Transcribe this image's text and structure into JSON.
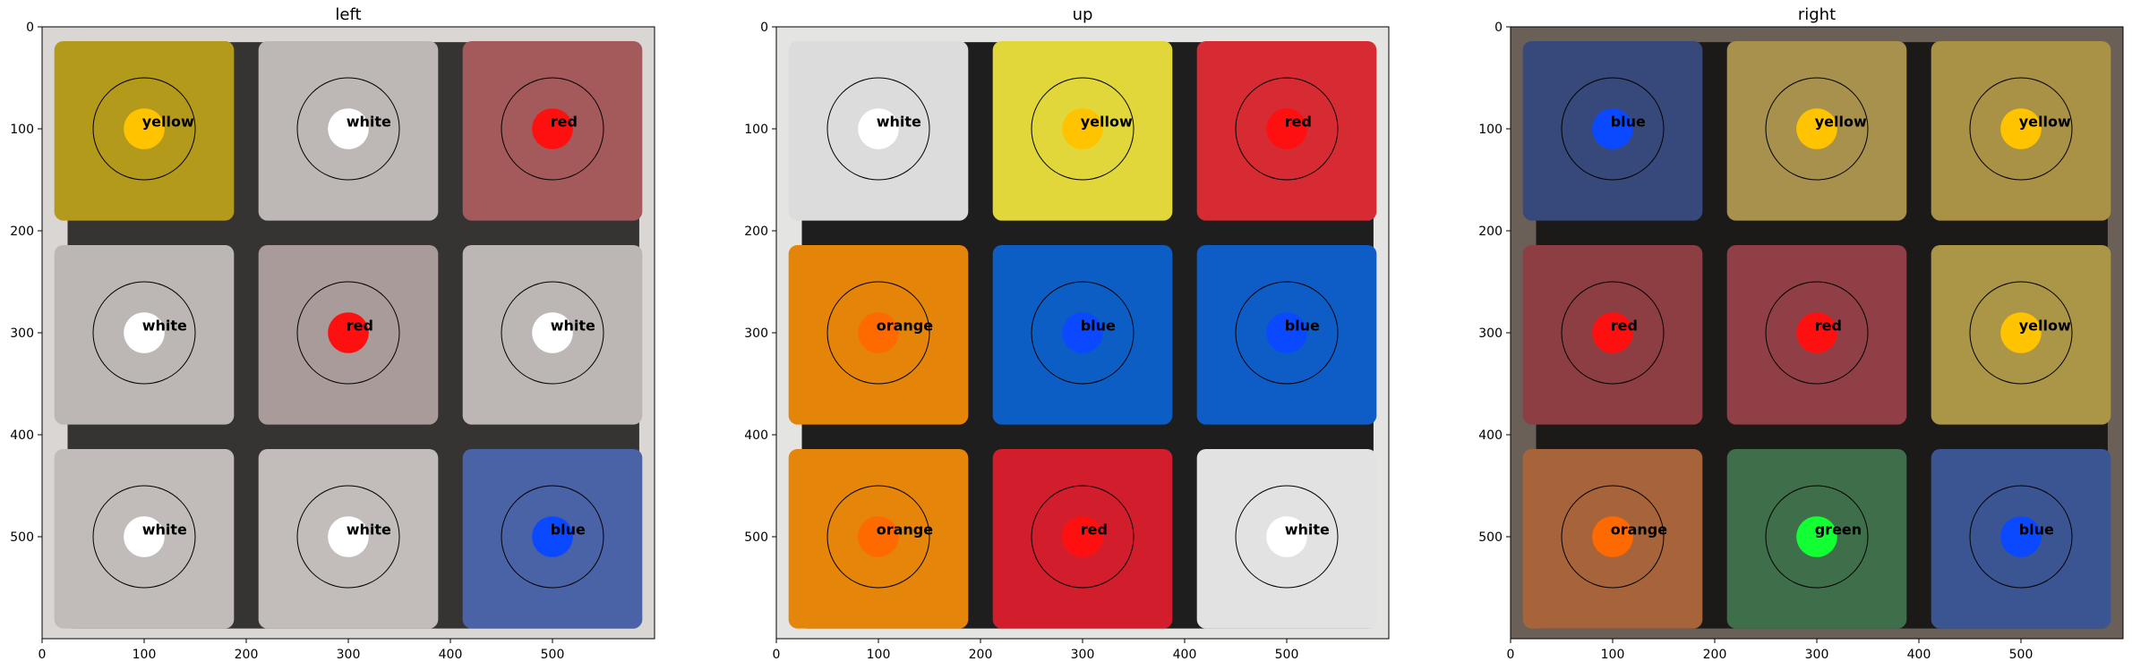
{
  "figure": {
    "background": "#ffffff",
    "axis_range": {
      "x": [
        0,
        599
      ],
      "y": [
        0,
        599
      ]
    },
    "ticks": {
      "values": [
        0,
        100,
        200,
        300,
        400,
        500
      ],
      "labels": [
        "0",
        "100",
        "200",
        "300",
        "400",
        "500"
      ]
    },
    "sample_points": [
      [
        100,
        100
      ],
      [
        300,
        100
      ],
      [
        500,
        100
      ],
      [
        100,
        300
      ],
      [
        300,
        300
      ],
      [
        500,
        300
      ],
      [
        100,
        500
      ],
      [
        300,
        500
      ],
      [
        500,
        500
      ]
    ],
    "palette": {
      "white": {
        "dot": "#ffffff",
        "sticker": "#b8b4b2"
      },
      "yellow": {
        "dot": "#ffc300",
        "sticker": "#a98f3a"
      },
      "red": {
        "dot": "#ff1010",
        "sticker": "#9e4b4f"
      },
      "blue": {
        "dot": "#0a49ff",
        "sticker": "#3e5a9c"
      },
      "orange": {
        "dot": "#ff6a00",
        "sticker": "#b26a3c"
      },
      "green": {
        "dot": "#11ff33",
        "sticker": "#3a6a45"
      }
    }
  },
  "panels": [
    {
      "title": "left",
      "frame_color": "#d9d6d3",
      "grid_color": "#363433",
      "cells": [
        {
          "label": "yellow",
          "sticker": "#b49a1a"
        },
        {
          "label": "white",
          "sticker": "#bdb7b5"
        },
        {
          "label": "red",
          "sticker": "#a4595b"
        },
        {
          "label": "white",
          "sticker": "#bcb6b4"
        },
        {
          "label": "red",
          "sticker": "#a99b99"
        },
        {
          "label": "white",
          "sticker": "#bcb6b4"
        },
        {
          "label": "white",
          "sticker": "#c1bbb9"
        },
        {
          "label": "white",
          "sticker": "#c2bcba"
        },
        {
          "label": "blue",
          "sticker": "#4a62a6"
        }
      ]
    },
    {
      "title": "up",
      "frame_color": "#e4e4e2",
      "grid_color": "#1e1e1e",
      "cells": [
        {
          "label": "white",
          "sticker": "#dcdcdc"
        },
        {
          "label": "yellow",
          "sticker": "#e2d73a"
        },
        {
          "label": "red",
          "sticker": "#d62b33"
        },
        {
          "label": "orange",
          "sticker": "#e4850a"
        },
        {
          "label": "blue",
          "sticker": "#0d5ec4"
        },
        {
          "label": "blue",
          "sticker": "#0e5dc6"
        },
        {
          "label": "orange",
          "sticker": "#e5860b"
        },
        {
          "label": "red",
          "sticker": "#d21e2c"
        },
        {
          "label": "white",
          "sticker": "#e1e2e1"
        }
      ]
    },
    {
      "title": "right",
      "frame_color": "#6a6058",
      "grid_color": "#1c1a18",
      "cells": [
        {
          "label": "blue",
          "sticker": "#37487a"
        },
        {
          "label": "yellow",
          "sticker": "#a7914c"
        },
        {
          "label": "yellow",
          "sticker": "#a99245"
        },
        {
          "label": "red",
          "sticker": "#8d3e43"
        },
        {
          "label": "red",
          "sticker": "#8f3f45"
        },
        {
          "label": "yellow",
          "sticker": "#ab9547"
        },
        {
          "label": "orange",
          "sticker": "#a7643a"
        },
        {
          "label": "green",
          "sticker": "#3e6e4a"
        },
        {
          "label": "blue",
          "sticker": "#3b5593"
        }
      ]
    }
  ]
}
